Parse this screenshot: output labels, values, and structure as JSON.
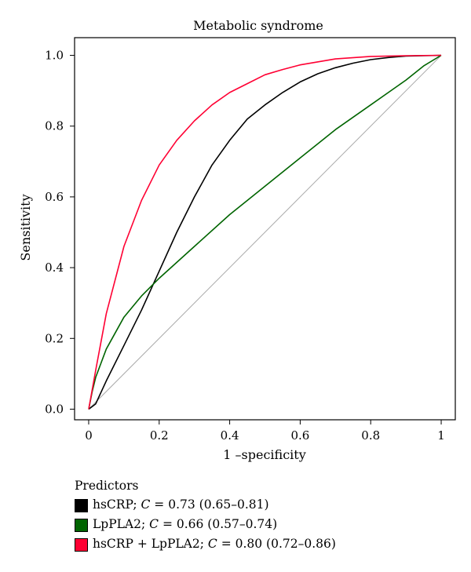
{
  "chart_data": {
    "type": "line",
    "title": "Metabolic syndrome",
    "xlabel": "1 –specificity",
    "ylabel": "Sensitivity",
    "xlim": [
      -0.04,
      1.04
    ],
    "ylim": [
      -0.03,
      1.05
    ],
    "x_ticks": [
      "0",
      "0.2",
      "0.4",
      "0.6",
      "0.8",
      "1"
    ],
    "y_ticks": [
      "0.0",
      "0.2",
      "0.4",
      "0.6",
      "0.8",
      "1.0"
    ],
    "grid": false,
    "legend_placement": "below",
    "reference_line": {
      "x": [
        0,
        1
      ],
      "y": [
        0,
        1
      ],
      "color": "#a9a9a9"
    },
    "series": [
      {
        "name": "hsCRP; C = 0.73 (0.65–0.81)",
        "color": "#000000",
        "x": [
          0,
          0.02,
          0.05,
          0.1,
          0.15,
          0.2,
          0.25,
          0.3,
          0.35,
          0.4,
          0.45,
          0.5,
          0.55,
          0.6,
          0.65,
          0.7,
          0.75,
          0.8,
          0.85,
          0.9,
          0.95,
          1.0
        ],
        "y": [
          0,
          0.015,
          0.08,
          0.18,
          0.28,
          0.39,
          0.5,
          0.6,
          0.69,
          0.76,
          0.82,
          0.86,
          0.895,
          0.925,
          0.948,
          0.965,
          0.978,
          0.988,
          0.994,
          0.998,
          0.999,
          1.0
        ]
      },
      {
        "name": "LpPLA2; C = 0.66 (0.57–0.74)",
        "color": "#006400",
        "x": [
          0,
          0.01,
          0.02,
          0.05,
          0.1,
          0.15,
          0.2,
          0.3,
          0.4,
          0.5,
          0.6,
          0.7,
          0.8,
          0.9,
          0.95,
          1.0
        ],
        "y": [
          0,
          0.05,
          0.09,
          0.17,
          0.26,
          0.32,
          0.37,
          0.46,
          0.55,
          0.63,
          0.71,
          0.79,
          0.86,
          0.93,
          0.97,
          1.0
        ]
      },
      {
        "name": "hsCRP + LpPLA2; C = 0.80 (0.72–0.86)",
        "color": "#ff0033",
        "x": [
          0,
          0.02,
          0.05,
          0.1,
          0.15,
          0.2,
          0.25,
          0.3,
          0.35,
          0.4,
          0.45,
          0.5,
          0.55,
          0.6,
          0.7,
          0.8,
          0.9,
          1.0
        ],
        "y": [
          0,
          0.11,
          0.27,
          0.46,
          0.59,
          0.69,
          0.76,
          0.815,
          0.86,
          0.895,
          0.92,
          0.945,
          0.96,
          0.973,
          0.99,
          0.997,
          0.999,
          1.0
        ]
      }
    ]
  },
  "legend": {
    "title": "Predictors",
    "items": [
      {
        "name_part": "hsCRP; ",
        "c_label": "C",
        "value_part": " = 0.73 (0.65–0.81)",
        "color": "#000000"
      },
      {
        "name_part": "LpPLA2; ",
        "c_label": "C",
        "value_part": " = 0.66 (0.57–0.74)",
        "color": "#006400"
      },
      {
        "name_part": "hsCRP + LpPLA2; ",
        "c_label": "C",
        "value_part": " = 0.80 (0.72–0.86)",
        "color": "#ff0033"
      }
    ]
  }
}
